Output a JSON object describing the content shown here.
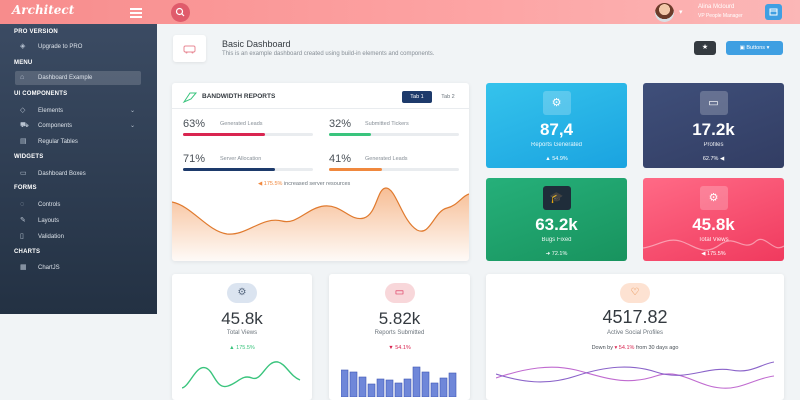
{
  "brand": "Architect",
  "user": {
    "name": "Alina Mclourd",
    "role": "VP People Manager"
  },
  "sidebar": {
    "sections": [
      {
        "heading": "PRO VERSION",
        "items": [
          {
            "label": "Upgrade to PRO",
            "icon": "gem-icon"
          }
        ]
      },
      {
        "heading": "MENU",
        "items": [
          {
            "label": "Dashboard Example",
            "icon": "rocket-icon",
            "active": true
          }
        ]
      },
      {
        "heading": "UI COMPONENTS",
        "items": [
          {
            "label": "Elements",
            "icon": "diamond-icon",
            "chevron": true
          },
          {
            "label": "Components",
            "icon": "car-icon",
            "chevron": true
          },
          {
            "label": "Regular Tables",
            "icon": "display-icon"
          }
        ]
      },
      {
        "heading": "WIDGETS",
        "items": [
          {
            "label": "Dashboard Boxes",
            "icon": "monitor-icon"
          }
        ]
      },
      {
        "heading": "FORMS",
        "items": [
          {
            "label": "Controls",
            "icon": "light-icon"
          },
          {
            "label": "Layouts",
            "icon": "eyedropper-icon"
          },
          {
            "label": "Validation",
            "icon": "pendrive-icon"
          }
        ]
      },
      {
        "heading": "CHARTS",
        "items": [
          {
            "label": "ChartJS",
            "icon": "graph-icon"
          }
        ]
      }
    ]
  },
  "header": {
    "title": "Basic Dashboard",
    "subtitle": "This is an example dashboard created using build-in elements and components.",
    "buttons_label": "Buttons"
  },
  "bandwidth": {
    "title": "BANDWIDTH REPORTS",
    "tabs": [
      "Tab 1",
      "Tab 2"
    ],
    "metrics": [
      {
        "value": "63%",
        "label": "Generated Leads",
        "progress": 0.63,
        "color": "#d92550"
      },
      {
        "value": "32%",
        "label": "Submitted Tickers",
        "progress": 0.32,
        "color": "#3ac47d"
      },
      {
        "value": "71%",
        "label": "Server Allocation",
        "progress": 0.71,
        "color": "#1d3a6b"
      },
      {
        "value": "41%",
        "label": "Generated Leads",
        "progress": 0.41,
        "color": "#f0883e"
      }
    ],
    "note_value": "175.5%",
    "note_text": "increased server resources"
  },
  "tiles": [
    {
      "value": "87,4",
      "label": "Reports Generated",
      "change": "54.9%",
      "arrow": "▲",
      "icon": "settings-icon"
    },
    {
      "value": "17.2k",
      "label": "Profiles",
      "change": "62.7%",
      "arrow": "◀",
      "icon": "monitor-icon"
    },
    {
      "value": "63.2k",
      "label": "Bugs Fixed",
      "change": "72.1%",
      "arrow": "➜",
      "icon": "graduation-icon"
    },
    {
      "value": "45.8k",
      "label": "Total Views",
      "change": "175.5%",
      "arrow": "◀",
      "icon": "settings-icon"
    }
  ],
  "stats": [
    {
      "value": "45.8k",
      "label": "Total Views",
      "change": "175.5%",
      "arrow": "▲",
      "icon": "settings-icon"
    },
    {
      "value": "5.82k",
      "label": "Reports Submitted",
      "change": "54.1%",
      "arrow": "▼",
      "icon": "laptop-icon"
    }
  ],
  "social": {
    "value": "4517.82",
    "label": "Active Social Profiles",
    "note_prefix": "Down by",
    "note_value": "54.1%",
    "note_suffix": "from 30 days ago",
    "icon": "heart-icon"
  },
  "colors": {
    "accent_red": "#d92550",
    "accent_green": "#3ac47d",
    "accent_blue": "#3f9fe2",
    "tile_cyan": "#2ab6e8",
    "tile_navy": "#3a4870",
    "tile_green": "#1fa06a",
    "tile_pink": "#f2476c"
  }
}
